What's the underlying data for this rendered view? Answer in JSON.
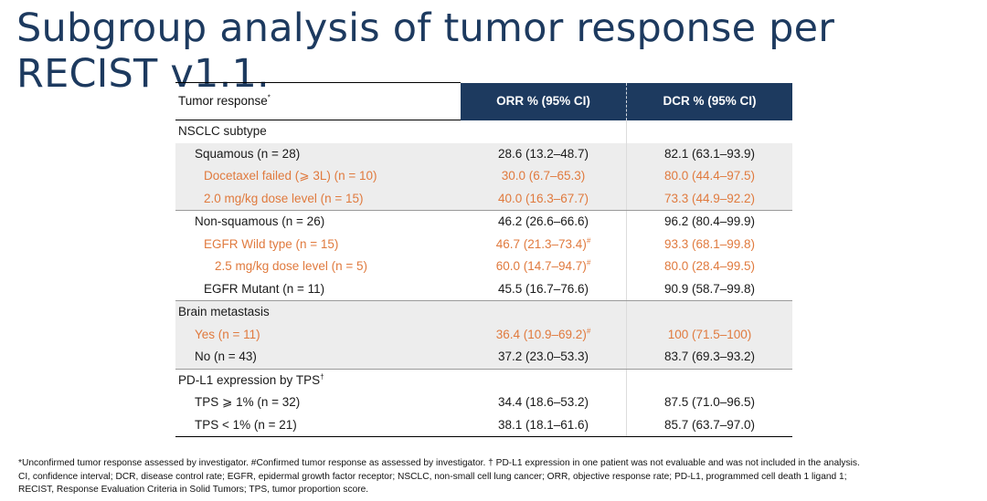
{
  "title": "Subgroup analysis of tumor response per RECIST v1.1.",
  "colors": {
    "header_bg": "#1d3a5f",
    "title": "#1d3a5f",
    "highlight": "#e07a3e",
    "row_shade": "#ededed"
  },
  "table": {
    "headers": {
      "label": "Tumor response",
      "label_sup": "*",
      "orr": "ORR % (95% CI)",
      "dcr": "DCR % (95% CI)"
    },
    "rows": [
      {
        "label": "NSCLC subtype",
        "orr": "",
        "orr_sup": "",
        "dcr": "",
        "level": 0,
        "shade": false,
        "highlight": false,
        "group_end": false
      },
      {
        "label": "Squamous (n = 28)",
        "orr": "28.6 (13.2–48.7)",
        "orr_sup": "",
        "dcr": "82.1 (63.1–93.9)",
        "level": 1,
        "shade": true,
        "highlight": false,
        "group_end": false
      },
      {
        "label": "Docetaxel failed (⩾ 3L) (n = 10)",
        "orr": "30.0 (6.7–65.3)",
        "orr_sup": "",
        "dcr": "80.0 (44.4–97.5)",
        "level": 2,
        "shade": true,
        "highlight": true,
        "group_end": false
      },
      {
        "label": "2.0 mg/kg dose level (n = 15)",
        "orr": "40.0 (16.3–67.7)",
        "orr_sup": "",
        "dcr": "73.3 (44.9–92.2)",
        "level": 2,
        "shade": true,
        "highlight": true,
        "group_end": true
      },
      {
        "label": "Non-squamous (n = 26)",
        "orr": "46.2 (26.6–66.6)",
        "orr_sup": "",
        "dcr": "96.2 (80.4–99.9)",
        "level": 1,
        "shade": false,
        "highlight": false,
        "group_end": false
      },
      {
        "label": "EGFR Wild type (n = 15)",
        "orr": "46.7 (21.3–73.4)",
        "orr_sup": "#",
        "dcr": "93.3 (68.1–99.8)",
        "level": 2,
        "shade": false,
        "highlight": true,
        "group_end": false
      },
      {
        "label": "2.5 mg/kg dose level (n = 5)",
        "orr": "60.0 (14.7–94.7)",
        "orr_sup": "#",
        "dcr": "80.0 (28.4–99.5)",
        "level": 3,
        "shade": false,
        "highlight": true,
        "group_end": false
      },
      {
        "label": "EGFR Mutant (n = 11)",
        "orr": "45.5 (16.7–76.6)",
        "orr_sup": "",
        "dcr": "90.9 (58.7–99.8)",
        "level": 2,
        "shade": false,
        "highlight": false,
        "group_end": true
      },
      {
        "label": "Brain metastasis",
        "orr": "",
        "orr_sup": "",
        "dcr": "",
        "level": 0,
        "shade": true,
        "highlight": false,
        "group_end": false
      },
      {
        "label": "Yes (n = 11)",
        "orr": "36.4 (10.9–69.2)",
        "orr_sup": "#",
        "dcr": "100 (71.5–100)",
        "level": 1,
        "shade": true,
        "highlight": true,
        "group_end": false
      },
      {
        "label": "No (n = 43)",
        "orr": "37.2 (23.0–53.3)",
        "orr_sup": "",
        "dcr": "83.7 (69.3–93.2)",
        "level": 1,
        "shade": true,
        "highlight": false,
        "group_end": true
      },
      {
        "label": "PD-L1 expression by TPS",
        "label_sup": "†",
        "orr": "",
        "orr_sup": "",
        "dcr": "",
        "level": 0,
        "shade": false,
        "highlight": false,
        "group_end": false
      },
      {
        "label": "TPS ⩾ 1% (n = 32)",
        "orr": "34.4 (18.6–53.2)",
        "orr_sup": "",
        "dcr": "87.5 (71.0–96.5)",
        "level": 1,
        "shade": false,
        "highlight": false,
        "group_end": false
      },
      {
        "label": "TPS < 1% (n = 21)",
        "orr": "38.1 (18.1–61.6)",
        "orr_sup": "",
        "dcr": "85.7 (63.7–97.0)",
        "level": 1,
        "shade": false,
        "highlight": false,
        "group_end": false
      }
    ]
  },
  "footnotes": {
    "line1": "*Unconfirmed tumor response assessed by investigator. #Confirmed tumor response as assessed by investigator. † PD-L1 expression in one patient was not evaluable and was not included in the analysis.",
    "line2": "CI, confidence interval; DCR, disease control rate; EGFR, epidermal growth factor receptor; NSCLC, non-small cell lung cancer; ORR, objective response rate; PD-L1, programmed cell death 1 ligand 1;",
    "line3": "RECIST, Response Evaluation Criteria in Solid Tumors; TPS, tumor proportion score."
  }
}
